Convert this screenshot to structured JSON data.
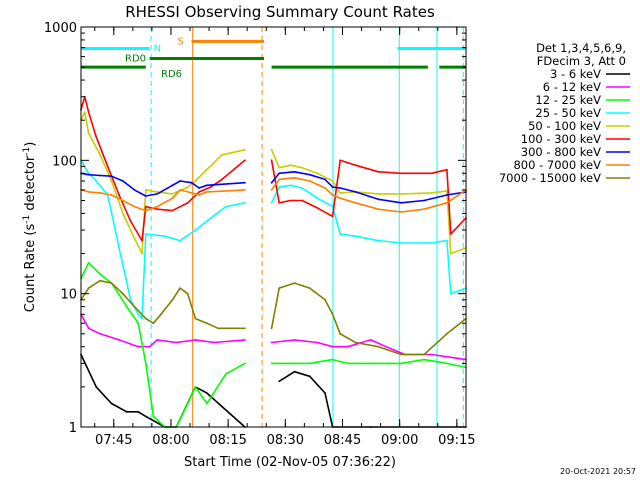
{
  "chart_data": {
    "type": "line",
    "title": "RHESSI Observing Summary Count Rates",
    "xlabel": "Start Time (02-Nov-05 07:36:22)",
    "ylabel": "Count Rate (s⁻¹ detector⁻¹)",
    "ylabel_main": "Count Rate (s",
    "ylabel_sup1": "-1",
    "ylabel_mid": " detector",
    "ylabel_sup2": "-1",
    "ylabel_end": ")",
    "y_scale": "log",
    "ylim": [
      1,
      1000
    ],
    "xlim_minutes": [
      0,
      101
    ],
    "x_ticks": [
      {
        "label": "07:45",
        "minute": 8.6
      },
      {
        "label": "08:00",
        "minute": 23.6
      },
      {
        "label": "08:15",
        "minute": 38.6
      },
      {
        "label": "08:30",
        "minute": 53.6
      },
      {
        "label": "08:45",
        "minute": 68.6
      },
      {
        "label": "09:00",
        "minute": 83.6
      },
      {
        "label": "09:15",
        "minute": 98.6
      }
    ],
    "y_ticks": [
      {
        "label": "1",
        "value": 1
      },
      {
        "label": "10",
        "value": 10
      },
      {
        "label": "100",
        "value": 100
      },
      {
        "label": "1000",
        "value": 1000
      }
    ],
    "legend_header": [
      "Det 1,3,4,5,6,9,",
      "FDecim 3, Att 0"
    ],
    "legend_placement": "right",
    "gaps_minutes": [
      [
        43,
        50
      ]
    ],
    "series": [
      {
        "name": "3 - 6 keV",
        "color": "#000000",
        "points": [
          [
            0,
            3.5
          ],
          [
            4,
            2
          ],
          [
            8,
            1.5
          ],
          [
            12,
            1.3
          ],
          [
            15,
            1.3
          ],
          [
            17,
            1.2
          ],
          [
            22,
            1
          ],
          [
            25,
            1
          ],
          [
            30,
            2
          ],
          [
            33,
            1.8
          ],
          [
            43,
            1
          ],
          [
            52,
            2.2
          ],
          [
            56,
            2.6
          ],
          [
            60,
            2.4
          ],
          [
            64,
            1.8
          ],
          [
            66,
            1
          ],
          [
            76,
            1
          ],
          [
            101,
            1
          ]
        ]
      },
      {
        "name": "6 - 12 keV",
        "color": "#ff00ff",
        "points": [
          [
            0,
            7
          ],
          [
            2,
            5.5
          ],
          [
            5,
            5
          ],
          [
            10,
            4.5
          ],
          [
            15,
            4
          ],
          [
            18,
            4
          ],
          [
            20,
            4.5
          ],
          [
            25,
            4.3
          ],
          [
            30,
            4.5
          ],
          [
            35,
            4.3
          ],
          [
            43,
            4.5
          ],
          [
            50,
            4.3
          ],
          [
            56,
            4.5
          ],
          [
            62,
            4.3
          ],
          [
            66,
            4
          ],
          [
            70,
            4
          ],
          [
            76,
            4.5
          ],
          [
            80,
            4
          ],
          [
            85,
            3.5
          ],
          [
            92,
            3.5
          ],
          [
            101,
            3.2
          ]
        ]
      },
      {
        "name": "12 - 25 keV",
        "color": "#00ff00",
        "points": [
          [
            0,
            13
          ],
          [
            2,
            17
          ],
          [
            5,
            14
          ],
          [
            8,
            12
          ],
          [
            12,
            8
          ],
          [
            15,
            6
          ],
          [
            17,
            3
          ],
          [
            19,
            1.2
          ],
          [
            22,
            1
          ],
          [
            25,
            1
          ],
          [
            28,
            1.5
          ],
          [
            30,
            2
          ],
          [
            33,
            1.5
          ],
          [
            38,
            2.5
          ],
          [
            43,
            3
          ],
          [
            50,
            3
          ],
          [
            55,
            3
          ],
          [
            60,
            3
          ],
          [
            66,
            3.2
          ],
          [
            70,
            3
          ],
          [
            76,
            3
          ],
          [
            84,
            3
          ],
          [
            90,
            3.2
          ],
          [
            96,
            3
          ],
          [
            101,
            2.8
          ]
        ]
      },
      {
        "name": "25 - 50 keV",
        "color": "#00ffff",
        "points": [
          [
            0,
            100
          ],
          [
            2,
            80
          ],
          [
            4,
            70
          ],
          [
            7,
            55
          ],
          [
            10,
            22
          ],
          [
            13,
            9
          ],
          [
            15,
            7
          ],
          [
            16,
            6.5
          ],
          [
            17,
            28
          ],
          [
            22,
            27
          ],
          [
            26,
            25
          ],
          [
            30,
            30
          ],
          [
            33,
            35
          ],
          [
            38,
            45
          ],
          [
            43,
            48
          ],
          [
            50,
            48
          ],
          [
            52,
            63
          ],
          [
            55,
            65
          ],
          [
            58,
            62
          ],
          [
            62,
            52
          ],
          [
            66,
            45
          ],
          [
            68,
            28
          ],
          [
            72,
            27
          ],
          [
            78,
            25
          ],
          [
            84,
            24
          ],
          [
            92,
            24
          ],
          [
            96,
            25
          ],
          [
            97,
            10
          ],
          [
            101,
            11
          ]
        ]
      },
      {
        "name": "50 - 100 keV",
        "color": "#cccc00",
        "points": [
          [
            0,
            200
          ],
          [
            1,
            230
          ],
          [
            2,
            160
          ],
          [
            5,
            110
          ],
          [
            8,
            70
          ],
          [
            11,
            40
          ],
          [
            14,
            26
          ],
          [
            16,
            20
          ],
          [
            17,
            60
          ],
          [
            20,
            58
          ],
          [
            24,
            56
          ],
          [
            28,
            63
          ],
          [
            30,
            70
          ],
          [
            33,
            85
          ],
          [
            37,
            110
          ],
          [
            43,
            120
          ],
          [
            50,
            120
          ],
          [
            52,
            88
          ],
          [
            55,
            92
          ],
          [
            58,
            88
          ],
          [
            62,
            80
          ],
          [
            66,
            70
          ],
          [
            68,
            57
          ],
          [
            72,
            58
          ],
          [
            78,
            56
          ],
          [
            84,
            56
          ],
          [
            92,
            57
          ],
          [
            96,
            59
          ],
          [
            97,
            20
          ],
          [
            101,
            22
          ]
        ]
      },
      {
        "name": "100 - 300 keV",
        "color": "#ff0000",
        "points": [
          [
            0,
            240
          ],
          [
            1,
            300
          ],
          [
            2,
            230
          ],
          [
            4,
            150
          ],
          [
            7,
            90
          ],
          [
            10,
            55
          ],
          [
            13,
            35
          ],
          [
            16,
            25
          ],
          [
            17,
            45
          ],
          [
            20,
            43
          ],
          [
            24,
            42
          ],
          [
            28,
            48
          ],
          [
            31,
            58
          ],
          [
            34,
            63
          ],
          [
            37,
            72
          ],
          [
            43,
            100
          ],
          [
            50,
            100
          ],
          [
            52,
            48
          ],
          [
            55,
            50
          ],
          [
            58,
            50
          ],
          [
            62,
            44
          ],
          [
            66,
            38
          ],
          [
            68,
            100
          ],
          [
            72,
            92
          ],
          [
            78,
            82
          ],
          [
            84,
            80
          ],
          [
            92,
            80
          ],
          [
            96,
            85
          ],
          [
            97,
            28
          ],
          [
            101,
            37
          ]
        ]
      },
      {
        "name": "300 - 800 keV",
        "color": "#0000ff",
        "points": [
          [
            0,
            80
          ],
          [
            2,
            78
          ],
          [
            5,
            77
          ],
          [
            8,
            76
          ],
          [
            11,
            70
          ],
          [
            14,
            60
          ],
          [
            17,
            54
          ],
          [
            20,
            56
          ],
          [
            24,
            65
          ],
          [
            26,
            70
          ],
          [
            29,
            68
          ],
          [
            31,
            62
          ],
          [
            33,
            65
          ],
          [
            43,
            68
          ],
          [
            50,
            68
          ],
          [
            52,
            80
          ],
          [
            56,
            82
          ],
          [
            60,
            78
          ],
          [
            64,
            72
          ],
          [
            66,
            63
          ],
          [
            68,
            62
          ],
          [
            72,
            58
          ],
          [
            78,
            51
          ],
          [
            84,
            48
          ],
          [
            90,
            50
          ],
          [
            96,
            55
          ],
          [
            101,
            58
          ]
        ]
      },
      {
        "name": "800 - 7000 keV",
        "color": "#ff8000",
        "points": [
          [
            0,
            60
          ],
          [
            2,
            58
          ],
          [
            5,
            57
          ],
          [
            8,
            55
          ],
          [
            11,
            50
          ],
          [
            14,
            45
          ],
          [
            17,
            42
          ],
          [
            20,
            45
          ],
          [
            24,
            52
          ],
          [
            26,
            60
          ],
          [
            29,
            57
          ],
          [
            31,
            55
          ],
          [
            33,
            58
          ],
          [
            43,
            60
          ],
          [
            50,
            60
          ],
          [
            52,
            72
          ],
          [
            56,
            74
          ],
          [
            60,
            70
          ],
          [
            64,
            62
          ],
          [
            66,
            55
          ],
          [
            68,
            52
          ],
          [
            72,
            48
          ],
          [
            78,
            43
          ],
          [
            84,
            41
          ],
          [
            90,
            43
          ],
          [
            96,
            48
          ],
          [
            101,
            60
          ]
        ]
      },
      {
        "name": "7000 - 15000 keV",
        "color": "#808000",
        "points": [
          [
            0,
            9
          ],
          [
            2,
            11
          ],
          [
            5,
            12.5
          ],
          [
            8,
            12
          ],
          [
            11,
            10
          ],
          [
            14,
            8
          ],
          [
            17,
            6.5
          ],
          [
            19,
            6
          ],
          [
            21,
            7
          ],
          [
            24,
            9
          ],
          [
            26,
            11
          ],
          [
            28,
            10
          ],
          [
            30,
            6.5
          ],
          [
            33,
            6
          ],
          [
            36,
            5.5
          ],
          [
            43,
            5.5
          ],
          [
            50,
            5.5
          ],
          [
            52,
            11
          ],
          [
            56,
            12
          ],
          [
            60,
            11
          ],
          [
            64,
            9
          ],
          [
            66,
            7
          ],
          [
            68,
            5
          ],
          [
            72,
            4.3
          ],
          [
            78,
            4
          ],
          [
            84,
            3.5
          ],
          [
            90,
            3.5
          ],
          [
            96,
            5
          ],
          [
            101,
            6.5
          ]
        ]
      }
    ],
    "state_bars": [
      {
        "label": "N",
        "color": "#00ffff",
        "level": 690,
        "segments": [
          [
            0,
            18
          ],
          [
            83,
            101
          ]
        ]
      },
      {
        "label": "S",
        "color": "#ff8000",
        "level": 780,
        "segments": [
          [
            29,
            48
          ]
        ]
      },
      {
        "label": "RD0",
        "color": "#008000",
        "level": 580,
        "segments": [
          [
            18,
            48
          ]
        ]
      },
      {
        "label": "RD6",
        "color": "#008000",
        "level": 500,
        "segments": [
          [
            0,
            17
          ],
          [
            50,
            66
          ],
          [
            66,
            91
          ],
          [
            94,
            101
          ]
        ]
      }
    ],
    "vertical_markers": [
      {
        "minute": 18.4,
        "color": "#00ffff",
        "style": "dashed"
      },
      {
        "minute": 29.3,
        "color": "#ff8000",
        "style": "solid"
      },
      {
        "minute": 47.5,
        "color": "#ff8000",
        "style": "dashed"
      },
      {
        "minute": 66.1,
        "color": "#00ffff",
        "style": "solid"
      },
      {
        "minute": 83.5,
        "color": "#00ffff",
        "style": "solid"
      },
      {
        "minute": 93.4,
        "color": "#00ffff",
        "style": "solid"
      },
      {
        "minute": 100.3,
        "color": "#00ffff",
        "style": "dashed"
      }
    ],
    "timestamp": "20-Oct-2021 20:57"
  }
}
